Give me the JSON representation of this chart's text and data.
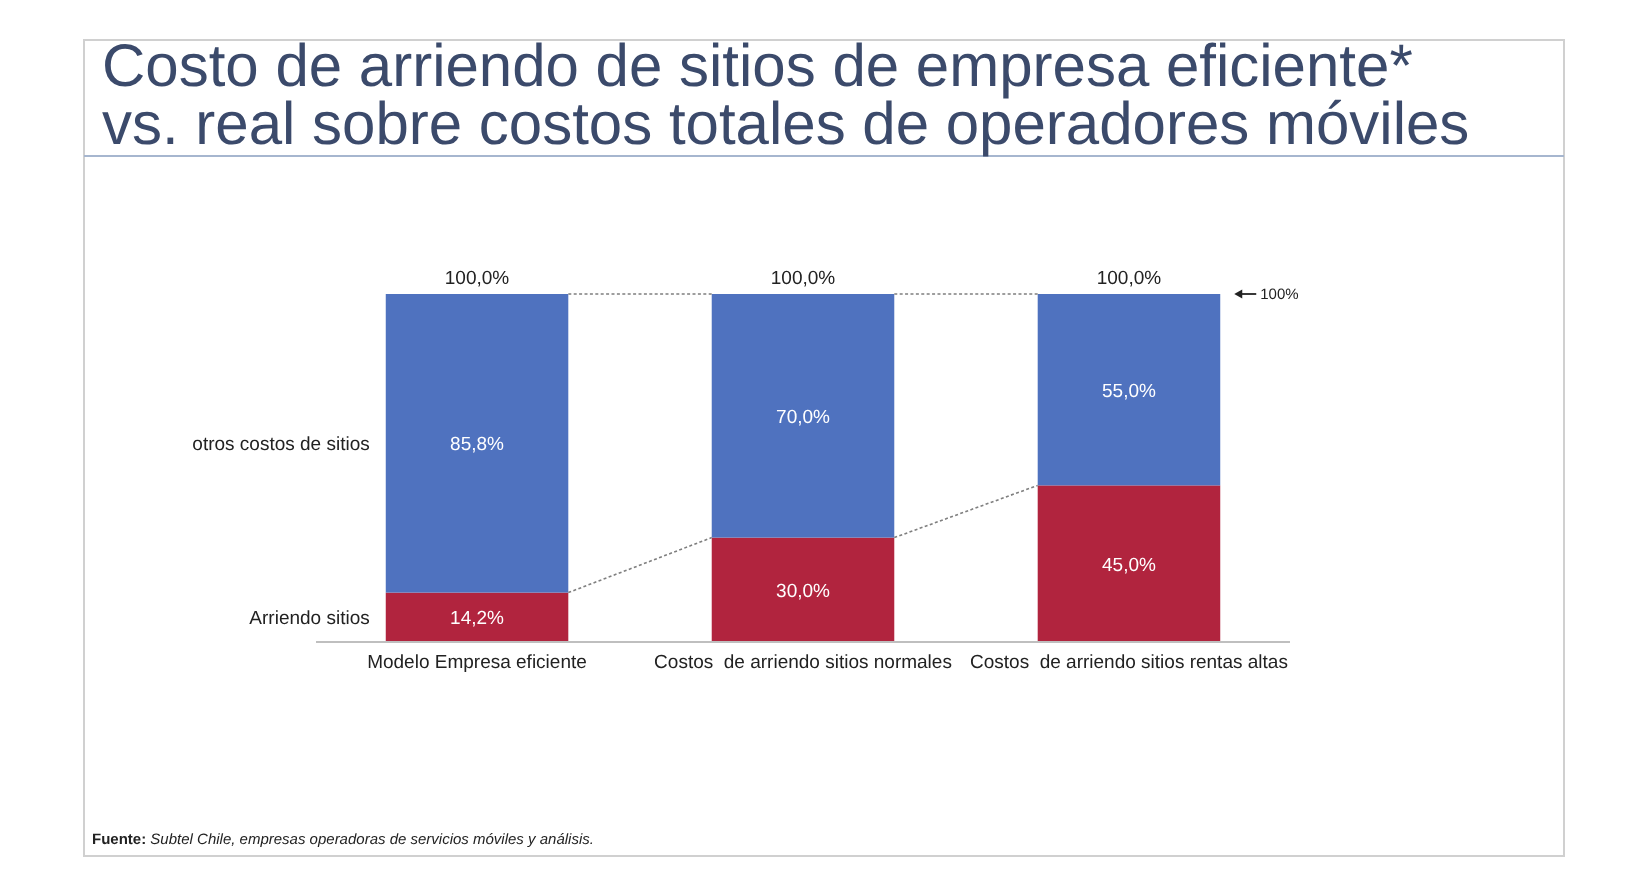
{
  "chart_data": {
    "type": "bar",
    "title": "Costo de arriendo de sitios de empresa eficiente* vs. real sobre costos totales de operadores móviles",
    "categories": [
      "Modelo Empresa eficiente",
      "Costos  de arriendo sitios normales",
      "Costos  de arriendo sitios rentas altas"
    ],
    "stacked": true,
    "ylim": [
      0,
      100
    ],
    "tick_labels": "x",
    "series": [
      {
        "name": "Arriendo sitios",
        "color": "#b1243e",
        "values": [
          14.2,
          30,
          45
        ],
        "value_labels": [
          "14,2%",
          "30,0%",
          "45,0%"
        ]
      },
      {
        "name": "otros costos de sitios",
        "color": "#4f72bf",
        "values": [
          85.8,
          70,
          55
        ],
        "value_labels": [
          "85,8%",
          "70,0%",
          "55,0%"
        ]
      }
    ],
    "totals": [
      "100,0%",
      "100,0%",
      "100,0%"
    ],
    "annotations": [
      "100%",
      "Fuente: Subtel Chile, empresas operadoras de servicios móviles y análisis."
    ]
  }
}
